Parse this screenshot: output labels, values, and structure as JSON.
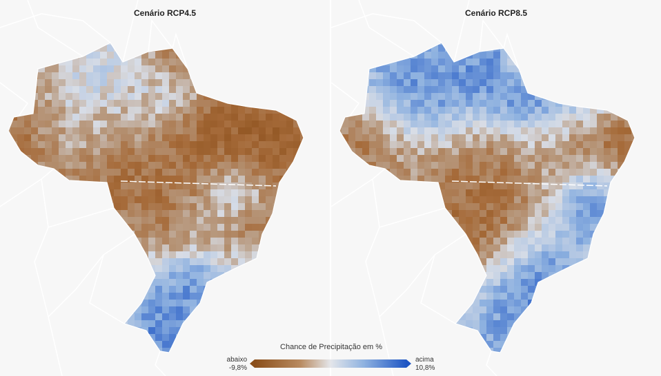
{
  "maps": [
    {
      "title": "Cenário RCP4.5",
      "scenario": "rcp45"
    },
    {
      "title": "Cenário RCP8.5",
      "scenario": "rcp85"
    }
  ],
  "legend": {
    "title": "Chance de Precipitação em %",
    "low_label": "abaixo",
    "low_value": "-9,8%",
    "high_label": "acima",
    "high_value": "10,8%",
    "min": -9.8,
    "max": 10.8
  },
  "colors": {
    "below_strong": "#8a4e1a",
    "below": "#a66b3a",
    "neutral_brown": "#b89a80",
    "neutral": "#d8dde6",
    "above": "#8fb2e0",
    "above_strong": "#1f56c4",
    "background": "#f7f7f7",
    "borders": "#ffffff"
  }
}
